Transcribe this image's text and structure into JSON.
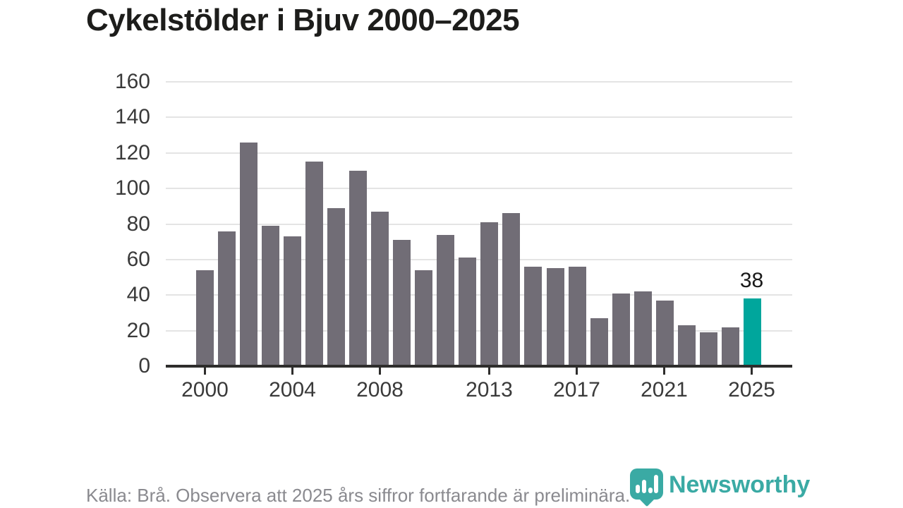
{
  "title": "Cykelstölder i Bjuv 2000–2025",
  "footer": {
    "source_note": "Källa: Brå. Observera att 2025 års siffror fortfarande är preliminära."
  },
  "logo": {
    "brand": "Newsworthy",
    "icon": "newsworthy-pin-barchart-icon"
  },
  "colors": {
    "bar": "#716d76",
    "bar_highlight": "#00a69c",
    "axis": "#2e2d2c",
    "gridline": "#e4e4e4",
    "axis_text": "#3a3a3a",
    "title_text": "#1d1d1b",
    "muted_text": "#8a8a8f",
    "logo_teal": "#2aa39d"
  },
  "chart_data": {
    "type": "bar",
    "title": "Cykelstölder i Bjuv 2000–2025",
    "xlabel": "",
    "ylabel": "",
    "categories": [
      2000,
      2001,
      2002,
      2003,
      2004,
      2005,
      2006,
      2007,
      2008,
      2009,
      2010,
      2011,
      2012,
      2013,
      2014,
      2015,
      2016,
      2017,
      2018,
      2019,
      2020,
      2021,
      2022,
      2023,
      2024,
      2025
    ],
    "values": [
      54,
      76,
      126,
      79,
      73,
      115,
      89,
      110,
      87,
      71,
      54,
      74,
      61,
      81,
      86,
      56,
      55,
      56,
      27,
      41,
      42,
      37,
      23,
      19,
      22,
      38
    ],
    "highlight_index": 25,
    "annotation": {
      "year": 2025,
      "value": 38,
      "label": "38"
    },
    "x_tick_years": [
      2000,
      2004,
      2008,
      2013,
      2017,
      2021,
      2025
    ],
    "x_tick_labels": [
      "2000",
      "2004",
      "2008",
      "2013",
      "2017",
      "2021",
      "2025"
    ],
    "y_ticks": [
      0,
      20,
      40,
      60,
      80,
      100,
      120,
      140,
      160
    ],
    "ylim": [
      0,
      160
    ],
    "grid": "horizontal",
    "legend": "none"
  }
}
